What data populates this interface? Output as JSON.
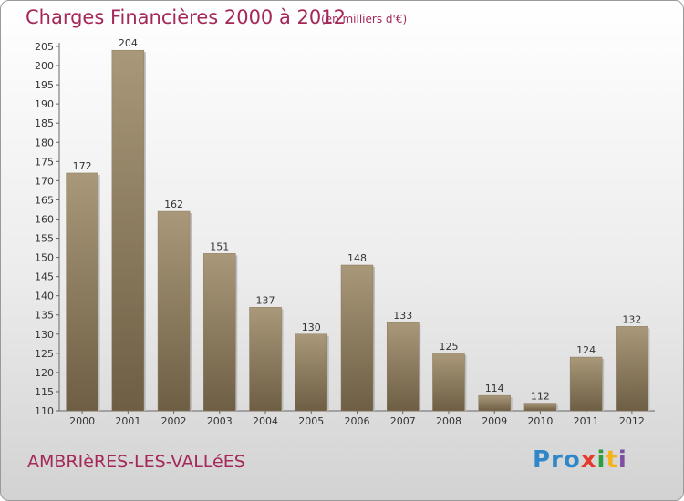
{
  "header": {
    "title": "Charges Financières 2000 à 2012",
    "subtitle": "(en milliers d'€)"
  },
  "footer": {
    "location": "AMBRIèRES-LES-VALLéES",
    "logo": [
      "Pro",
      "x",
      "i",
      "t",
      "i"
    ]
  },
  "colors": {
    "title": "#a5285a",
    "bar_light": "#a99879",
    "bar_dark": "#6e5e44",
    "axis": "#666666"
  },
  "chart_data": {
    "type": "bar",
    "title": "Charges Financières 2000 à 2012",
    "subtitle": "(en milliers d'€)",
    "categories": [
      "2000",
      "2001",
      "2002",
      "2003",
      "2004",
      "2005",
      "2006",
      "2007",
      "2008",
      "2009",
      "2010",
      "2011",
      "2012"
    ],
    "values": [
      172,
      204,
      162,
      151,
      137,
      130,
      148,
      133,
      125,
      114,
      112,
      124,
      132
    ],
    "ylim": [
      110,
      205
    ],
    "yticks": [
      110,
      115,
      120,
      125,
      130,
      135,
      140,
      145,
      150,
      155,
      160,
      165,
      170,
      175,
      180,
      185,
      190,
      195,
      200,
      205
    ],
    "grid": false,
    "legend": "none"
  }
}
